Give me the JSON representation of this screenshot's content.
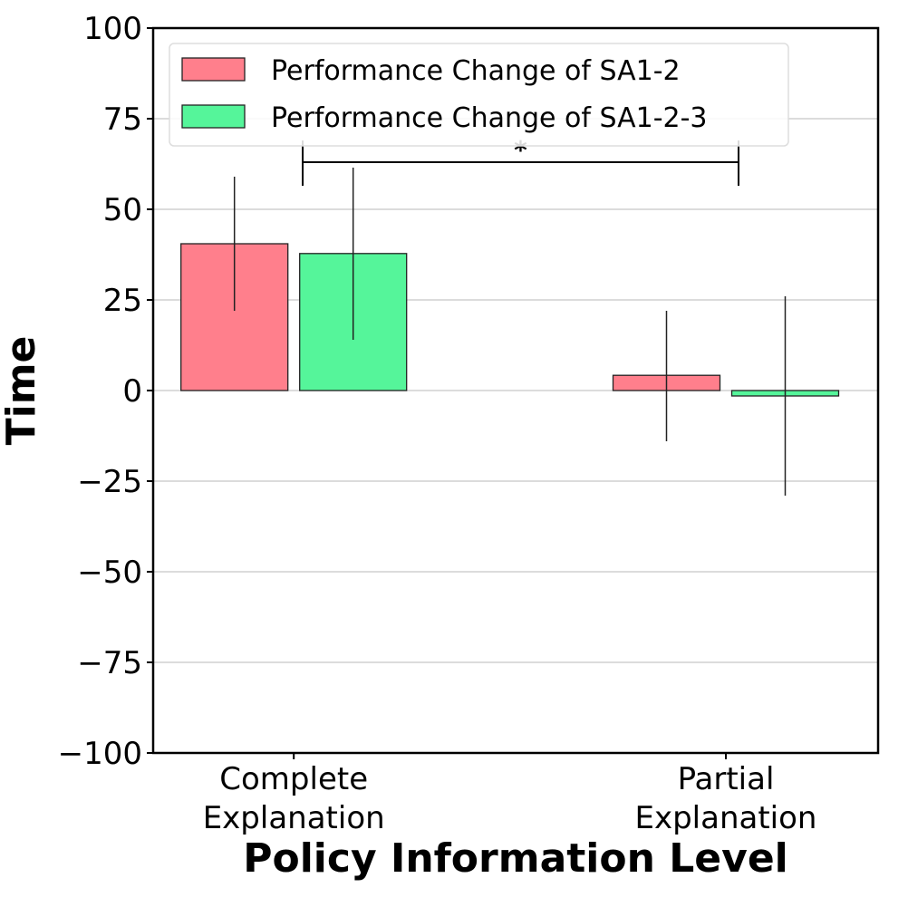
{
  "chart_data": {
    "type": "bar",
    "title": "",
    "xlabel": "Policy Information Level",
    "ylabel": "Time",
    "ylim": [
      -100,
      100
    ],
    "yticks": [
      100,
      75,
      50,
      25,
      0,
      -25,
      -50,
      -75,
      -100
    ],
    "ytick_labels": [
      "100",
      "75",
      "50",
      "25",
      "0",
      "−25",
      "−50",
      "−75",
      "−100"
    ],
    "categories": [
      [
        "Complete",
        "Explanation"
      ],
      [
        "Partial",
        "Explanation"
      ]
    ],
    "series": [
      {
        "name": "Performance Change of SA1-2",
        "color": "#ff7f8c",
        "values": [
          40.5,
          4.2
        ],
        "error_low": [
          22,
          -14
        ],
        "error_high": [
          59,
          22
        ]
      },
      {
        "name": "Performance Change of SA1-2-3",
        "color": "#55f59a",
        "values": [
          37.8,
          -1.5
        ],
        "error_low": [
          14,
          -29
        ],
        "error_high": [
          61.5,
          26
        ]
      }
    ],
    "grid": "horizontal",
    "legend_position": "top-left",
    "significance": {
      "label": "*"
    }
  }
}
